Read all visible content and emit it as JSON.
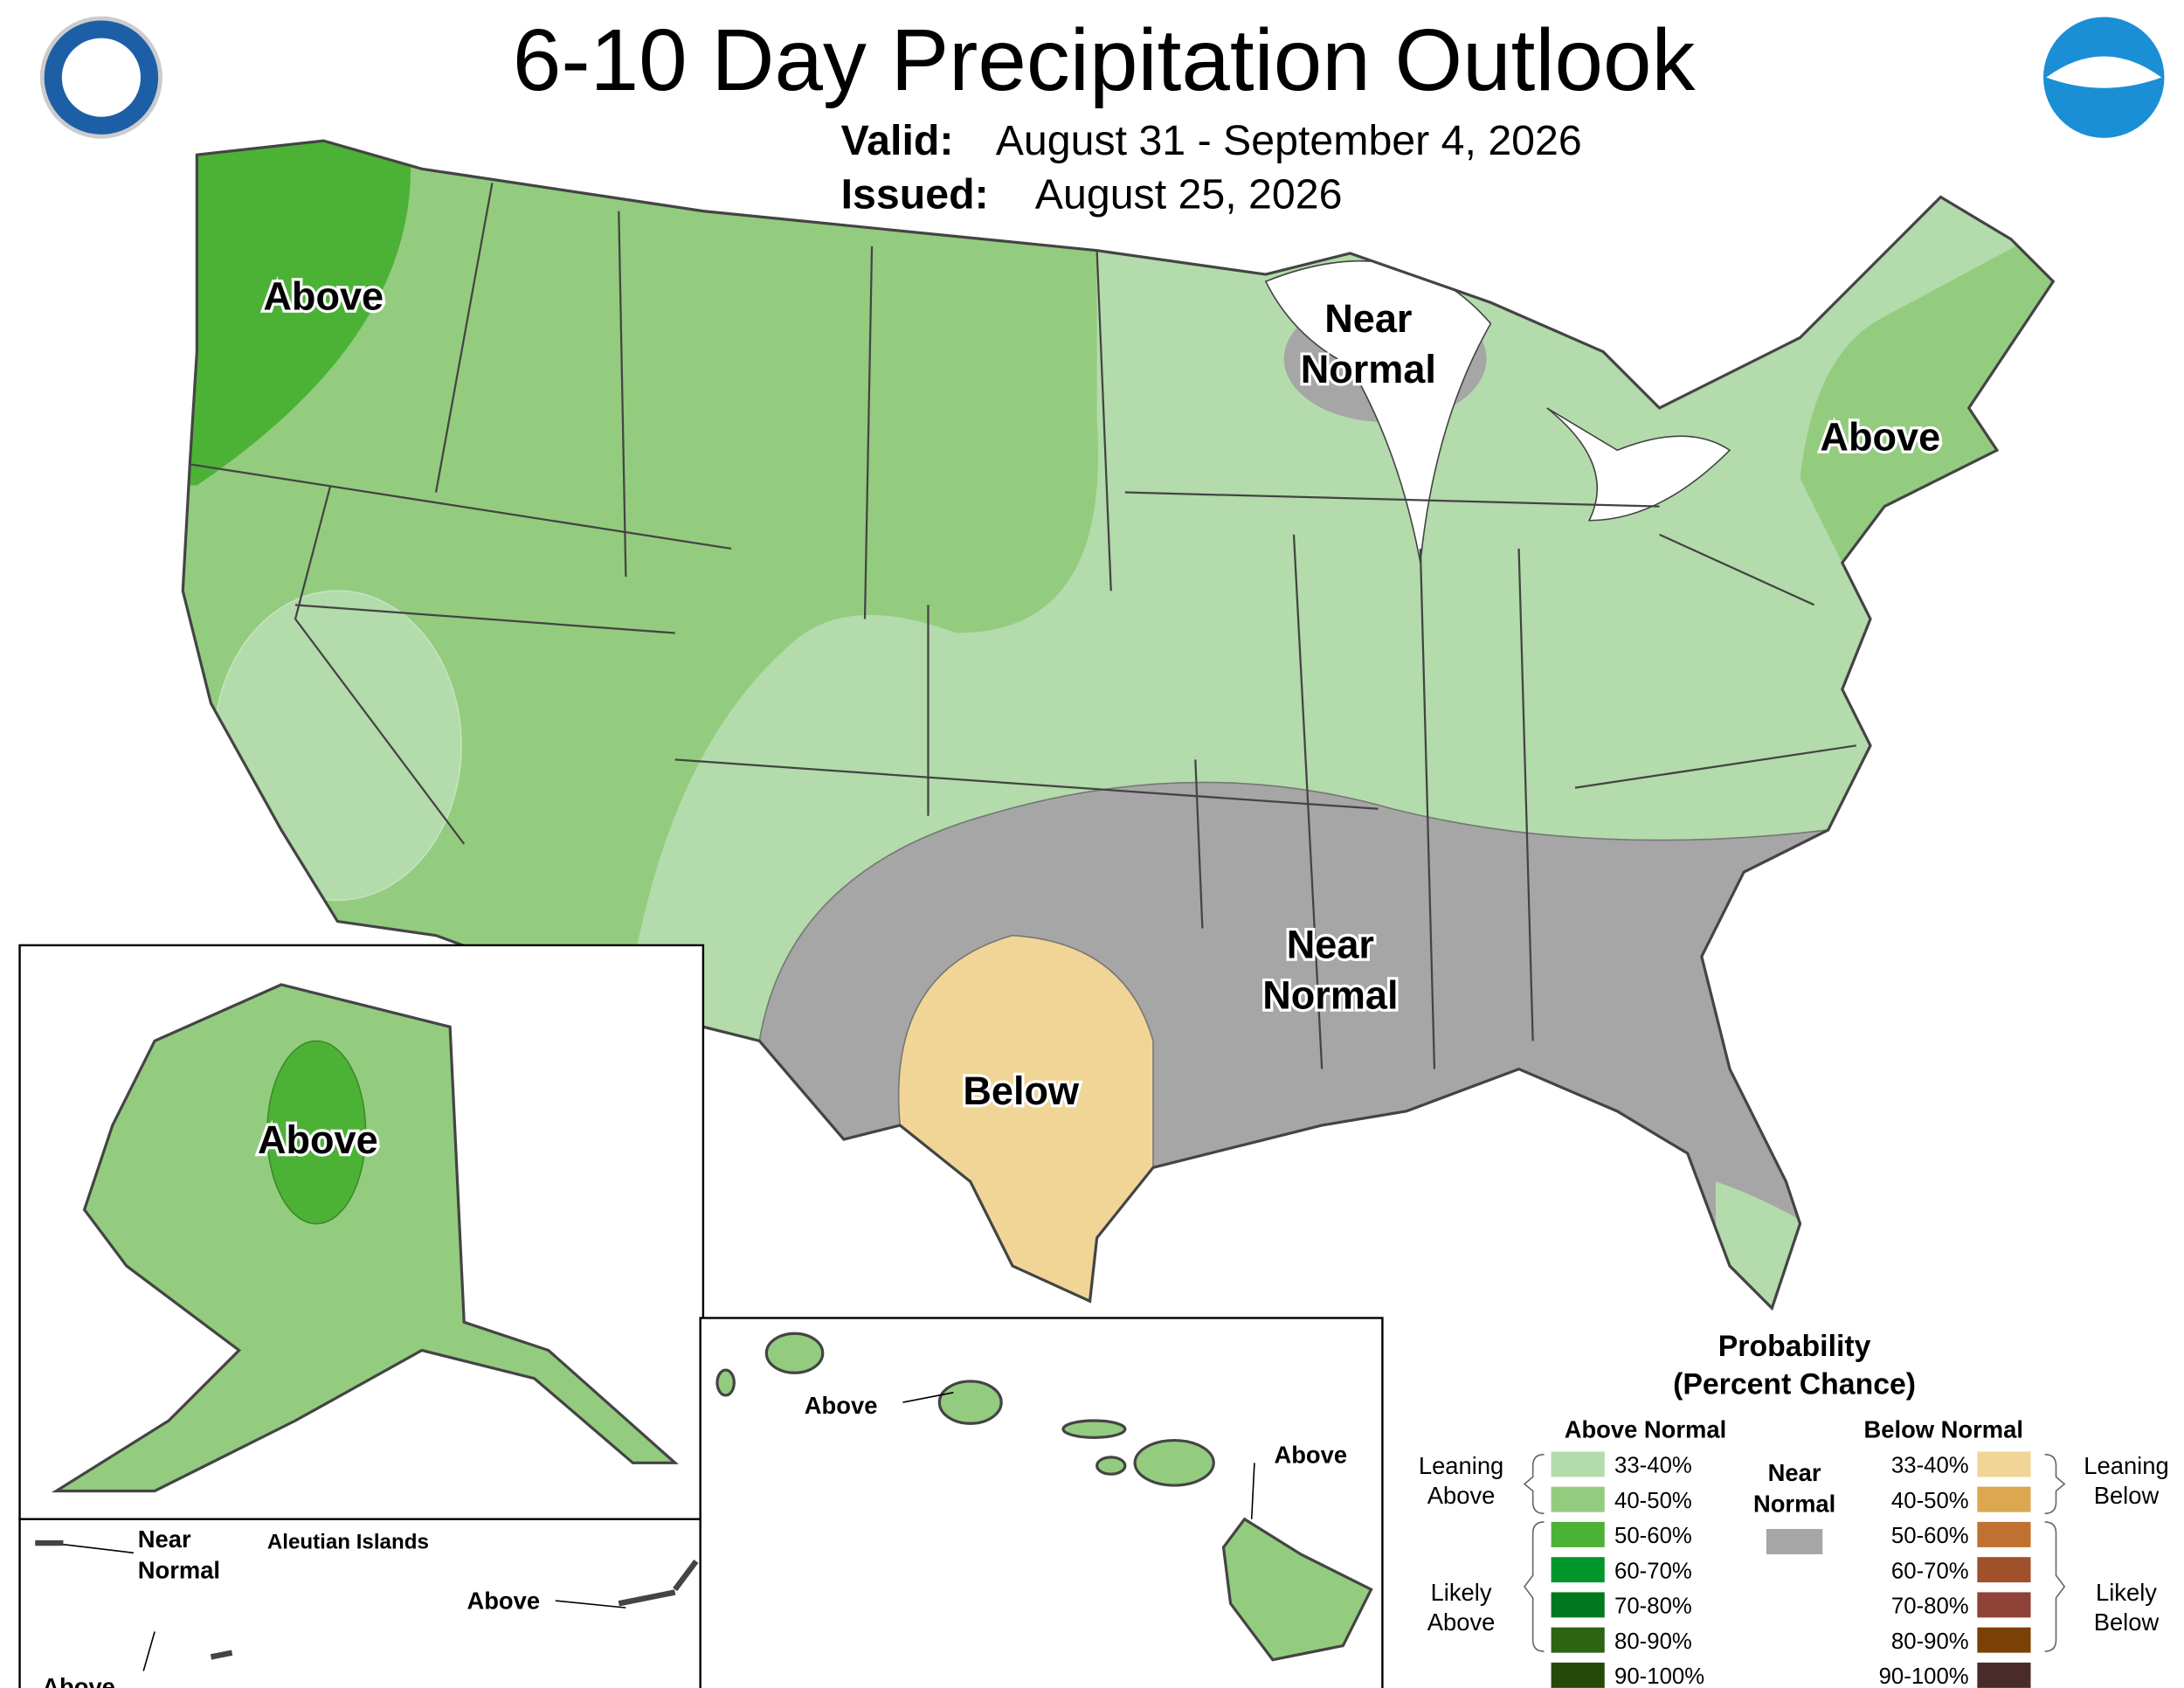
{
  "header": {
    "title": "6-10 Day Precipitation Outlook",
    "valid_label": "Valid:",
    "valid": "August 31 - September 4, 2026",
    "issued_label": "Issued:",
    "issued": "August 25, 2026"
  },
  "map_labels": {
    "northwest": "Above",
    "great_lakes": [
      "Near",
      "Normal"
    ],
    "northeast": "Above",
    "southeast": [
      "Near",
      "Normal"
    ],
    "texas": "Below",
    "alaska": "Above",
    "hawaii_west": "Above",
    "hawaii_east": "Above",
    "aleutian_west": [
      "Near",
      "Normal"
    ],
    "aleutian_title": "Aleutian Islands",
    "aleutian_east": "Above",
    "aleutian_south": "Above"
  },
  "legend": {
    "title": "Probability",
    "subtitle": "(Percent Chance)",
    "above_header": "Above Normal",
    "below_header": "Below Normal",
    "near": [
      "Near",
      "Normal"
    ],
    "near_color": "#a6a6a6",
    "above": [
      {
        "label": "33-40%",
        "color": "#b3dbab"
      },
      {
        "label": "40-50%",
        "color": "#93cc7f"
      },
      {
        "label": "50-60%",
        "color": "#4cb236"
      },
      {
        "label": "60-70%",
        "color": "#00962b"
      },
      {
        "label": "70-80%",
        "color": "#00781e"
      },
      {
        "label": "80-90%",
        "color": "#2d6414"
      },
      {
        "label": "90-100%",
        "color": "#244a0a"
      }
    ],
    "below": [
      {
        "label": "33-40%",
        "color": "#f0d597"
      },
      {
        "label": "40-50%",
        "color": "#dba74f"
      },
      {
        "label": "50-60%",
        "color": "#c0712f"
      },
      {
        "label": "60-70%",
        "color": "#a0512b"
      },
      {
        "label": "70-80%",
        "color": "#914238"
      },
      {
        "label": "80-90%",
        "color": "#7a4106"
      },
      {
        "label": "90-100%",
        "color": "#4a2b2b"
      }
    ],
    "leaning_above": [
      "Leaning",
      "Above"
    ],
    "likely_above": [
      "Likely",
      "Above"
    ],
    "leaning_below": [
      "Leaning",
      "Below"
    ],
    "likely_below": [
      "Likely",
      "Below"
    ]
  }
}
